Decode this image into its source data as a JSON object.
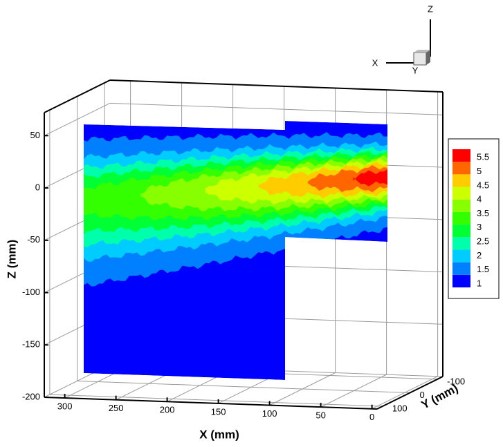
{
  "chart_data": {
    "type": "contour3d",
    "xlabel": "X (mm)",
    "ylabel": "Y (mm)",
    "zlabel": "Z (mm)",
    "xlim": [
      320,
      -5
    ],
    "ylim": [
      -120,
      120
    ],
    "zlim": [
      -200,
      72
    ],
    "xticks": [
      300,
      250,
      200,
      150,
      100,
      50,
      0
    ],
    "yticks": [
      -100,
      0,
      100
    ],
    "zticks": [
      50,
      0,
      -50,
      -100,
      -150,
      -200
    ],
    "levels": [
      1,
      1.5,
      2,
      2.5,
      3,
      3.5,
      4,
      4.5,
      5,
      5.5
    ],
    "colors": [
      "#0000ff",
      "#0080ff",
      "#00ccff",
      "#00ffaa",
      "#00ff33",
      "#33ff00",
      "#88ff00",
      "#ccff00",
      "#ffcc00",
      "#ff6600",
      "#ff0000"
    ],
    "grid": true,
    "orientation_axes": [
      "X",
      "Y",
      "Z"
    ]
  }
}
